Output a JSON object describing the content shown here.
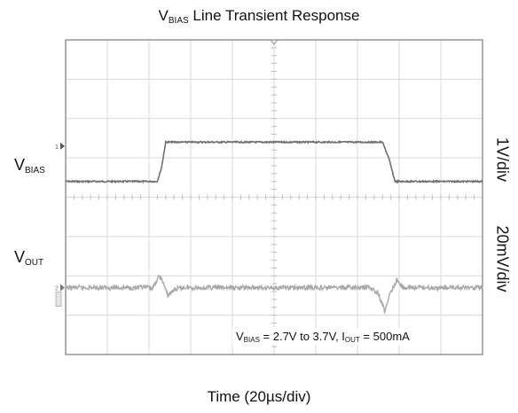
{
  "chart_data": {
    "type": "line",
    "title": {
      "main": "V",
      "sub": "BIAS",
      "rest": " Line Transient Response"
    },
    "xlabel": "Time (20µs/div)",
    "x_divisions": 10,
    "y_divisions": 8,
    "grid": true,
    "series": [
      {
        "label_main": "V",
        "label_sub": "BIAS",
        "scale": "1V/div",
        "color": "#6f6f6f",
        "unit": "V",
        "baseline_div": 4.4,
        "volts_per_div": 1,
        "points": [
          [
            0,
            2.7
          ],
          [
            44,
            2.7
          ],
          [
            46,
            3.05
          ],
          [
            48,
            3.7
          ],
          [
            152,
            3.7
          ],
          [
            155,
            3.3
          ],
          [
            158,
            2.7
          ],
          [
            200,
            2.7
          ]
        ]
      },
      {
        "label_main": "V",
        "label_sub": "OUT",
        "scale": "20mV/div",
        "color": "#a8a8a8",
        "unit": "mV",
        "baseline_div": 1.7,
        "volts_per_div": 20,
        "points": [
          [
            0,
            0
          ],
          [
            42,
            0
          ],
          [
            45,
            6
          ],
          [
            47,
            2
          ],
          [
            49,
            -4
          ],
          [
            52,
            -1
          ],
          [
            56,
            0
          ],
          [
            146,
            0
          ],
          [
            150,
            -3
          ],
          [
            153,
            -12
          ],
          [
            156,
            -2
          ],
          [
            159,
            4
          ],
          [
            162,
            0
          ],
          [
            200,
            0
          ]
        ]
      }
    ],
    "annotation": {
      "a_main": "V",
      "a_sub": "BIAS",
      "b": " = 2.7V to 3.7V, I",
      "b_sub": "OUT",
      "c": " = 500mA"
    },
    "channel_markers": {
      "ch1": "1",
      "ch2": "2"
    }
  }
}
